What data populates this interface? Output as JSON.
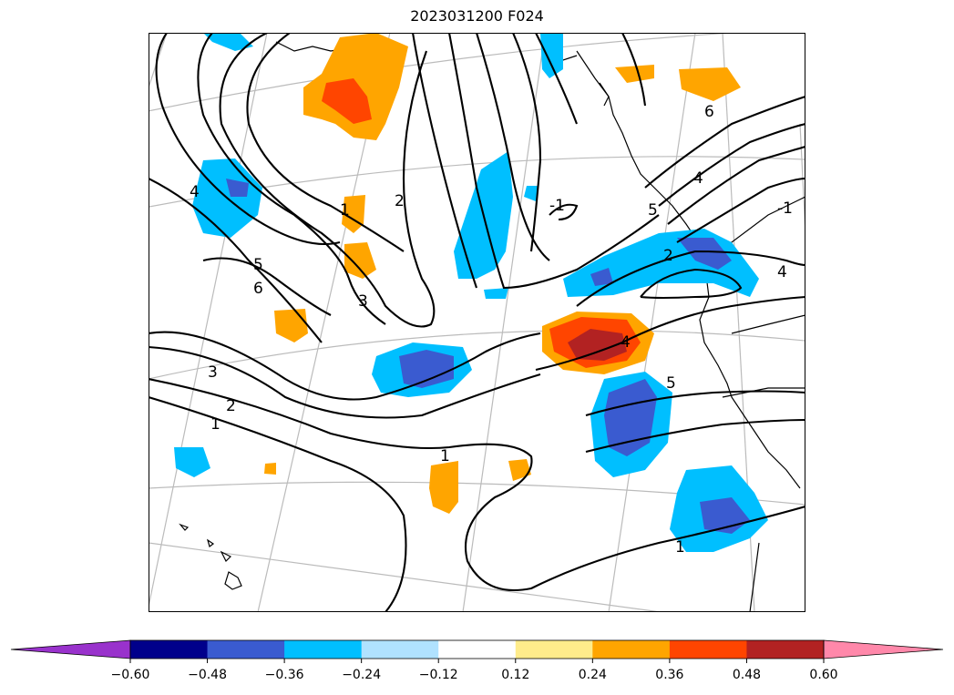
{
  "title": "2023031200 F024",
  "contour_labels": [
    "1",
    "2",
    "3",
    "4",
    "5",
    "6",
    "-1"
  ],
  "colorbar": {
    "ticks": [
      "−0.60",
      "−0.48",
      "−0.36",
      "−0.24",
      "−0.12",
      "0.12",
      "0.24",
      "0.36",
      "0.48",
      "0.60"
    ],
    "colors": [
      "#9932cc",
      "#00008b",
      "#3a5bd0",
      "#00bfff",
      "#b0e2ff",
      "#ffffff",
      "#ffec8b",
      "#ffa500",
      "#ff4500",
      "#b22222",
      "#ff88aa"
    ]
  }
}
